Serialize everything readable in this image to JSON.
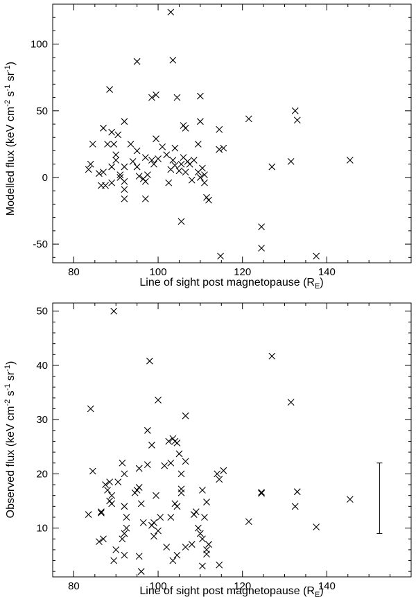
{
  "chart_data": [
    {
      "type": "scatter",
      "marker": "x",
      "xlabel_main": "Line of sight post magnetopause  (R",
      "xlabel_sub": "E",
      "xlabel_close": ")",
      "ylabel_main": "Modelled flux (keV cm",
      "ylabel_sup1": "-2",
      "ylabel_mid1": " s",
      "ylabel_sup2": "-1",
      "ylabel_mid2": " sr",
      "ylabel_sup3": "-1",
      "ylabel_close": ")",
      "xlim": [
        75,
        160
      ],
      "ylim": [
        -64,
        130
      ],
      "xticks": [
        80,
        100,
        120,
        140
      ],
      "xtick_labels": [
        "80",
        "100",
        "120",
        "140"
      ],
      "yticks": [
        -50,
        0,
        50,
        100
      ],
      "ytick_labels": [
        "-50",
        "0",
        "50",
        "100"
      ],
      "grid": false,
      "points": [
        [
          103,
          124
        ],
        [
          95,
          87
        ],
        [
          103.5,
          88
        ],
        [
          88.5,
          66
        ],
        [
          99.5,
          62
        ],
        [
          98.5,
          60
        ],
        [
          104.5,
          60
        ],
        [
          110,
          61
        ],
        [
          92,
          42
        ],
        [
          87,
          37
        ],
        [
          89,
          34
        ],
        [
          90.5,
          32
        ],
        [
          88,
          25
        ],
        [
          84.5,
          25
        ],
        [
          89.5,
          25
        ],
        [
          92,
          8
        ],
        [
          84,
          10
        ],
        [
          83.5,
          6
        ],
        [
          86,
          3
        ],
        [
          87,
          4
        ],
        [
          90,
          13
        ],
        [
          91,
          0
        ],
        [
          91,
          2
        ],
        [
          92,
          -3
        ],
        [
          92,
          -9
        ],
        [
          92,
          -16
        ],
        [
          86.5,
          -6
        ],
        [
          87.5,
          -6
        ],
        [
          89,
          -4
        ],
        [
          89,
          8
        ],
        [
          90,
          17
        ],
        [
          93.5,
          25
        ],
        [
          95,
          20
        ],
        [
          94,
          12
        ],
        [
          95,
          8
        ],
        [
          95.5,
          1
        ],
        [
          96.5,
          -1
        ],
        [
          97,
          -3
        ],
        [
          97.5,
          2
        ],
        [
          97,
          15
        ],
        [
          98.5,
          13
        ],
        [
          99,
          10
        ],
        [
          99.5,
          29
        ],
        [
          100,
          14
        ],
        [
          101,
          23
        ],
        [
          102,
          17
        ],
        [
          102.5,
          -4
        ],
        [
          103,
          6
        ],
        [
          103.5,
          13
        ],
        [
          104,
          9
        ],
        [
          104,
          22
        ],
        [
          105,
          5
        ],
        [
          106,
          39
        ],
        [
          106.5,
          37
        ],
        [
          106,
          15
        ],
        [
          106.5,
          4
        ],
        [
          107,
          12
        ],
        [
          107.5,
          10
        ],
        [
          108,
          -2
        ],
        [
          108.5,
          13
        ],
        [
          109.5,
          4
        ],
        [
          110,
          0
        ],
        [
          110.5,
          7
        ],
        [
          111,
          -4
        ],
        [
          111.5,
          -15
        ],
        [
          112,
          -17
        ],
        [
          109.5,
          25
        ],
        [
          110,
          42
        ],
        [
          105.5,
          -33
        ],
        [
          97,
          -16
        ],
        [
          114.5,
          36
        ],
        [
          114.5,
          21
        ],
        [
          115.5,
          22
        ],
        [
          121.5,
          44
        ],
        [
          114.8,
          -59
        ],
        [
          124.5,
          -37
        ],
        [
          124.5,
          -53
        ],
        [
          127,
          8
        ],
        [
          131.5,
          12
        ],
        [
          132.5,
          50
        ],
        [
          133,
          43
        ],
        [
          137.5,
          -59
        ],
        [
          145.5,
          13
        ],
        [
          105.5,
          10
        ],
        [
          111,
          2
        ]
      ]
    },
    {
      "type": "scatter",
      "marker": "x",
      "xlabel_main": "Line of sight post magnetopause  (R",
      "xlabel_sub": "E",
      "xlabel_close": ")",
      "ylabel_main": "Observed flux (keV cm",
      "ylabel_sup1": "-2",
      "ylabel_mid1": " s",
      "ylabel_sup2": "-1",
      "ylabel_mid2": " sr",
      "ylabel_sup3": "-1",
      "ylabel_close": ")",
      "xlim": [
        75,
        160
      ],
      "ylim": [
        1,
        51.5
      ],
      "xticks": [
        80,
        100,
        120,
        140
      ],
      "xtick_labels": [
        "80",
        "100",
        "120",
        "140"
      ],
      "yticks": [
        10,
        20,
        30,
        40,
        50
      ],
      "ytick_labels": [
        "10",
        "20",
        "30",
        "40",
        "50"
      ],
      "grid": false,
      "points": [
        [
          89.5,
          50
        ],
        [
          98,
          40.8
        ],
        [
          127,
          41.7
        ],
        [
          131.5,
          33.2
        ],
        [
          84,
          32
        ],
        [
          100,
          33.6
        ],
        [
          106.5,
          30.7
        ],
        [
          97.5,
          28
        ],
        [
          84.5,
          20.5
        ],
        [
          87.5,
          18
        ],
        [
          88.5,
          18.5
        ],
        [
          88,
          17
        ],
        [
          89,
          16
        ],
        [
          88.5,
          15
        ],
        [
          89,
          14.5
        ],
        [
          90.5,
          18.5
        ],
        [
          91.5,
          22
        ],
        [
          92,
          20
        ],
        [
          92,
          14
        ],
        [
          92.5,
          12
        ],
        [
          92.5,
          10
        ],
        [
          92,
          9
        ],
        [
          91.5,
          8
        ],
        [
          92,
          5
        ],
        [
          90,
          6
        ],
        [
          89.5,
          4
        ],
        [
          86,
          7.5
        ],
        [
          87,
          8
        ],
        [
          86.5,
          13
        ],
        [
          86.5,
          12.8
        ],
        [
          83.5,
          12.5
        ],
        [
          94.5,
          16.5
        ],
        [
          95,
          17
        ],
        [
          95.5,
          17.5
        ],
        [
          95.5,
          21
        ],
        [
          96,
          14.5
        ],
        [
          96.5,
          11
        ],
        [
          97.5,
          21.7
        ],
        [
          98.5,
          25.3
        ],
        [
          98.5,
          10.5
        ],
        [
          99,
          11
        ],
        [
          99,
          8.5
        ],
        [
          99.5,
          16
        ],
        [
          100,
          9.5
        ],
        [
          100.5,
          12
        ],
        [
          102,
          6.5
        ],
        [
          102.5,
          26
        ],
        [
          103,
          22
        ],
        [
          103.5,
          26.5
        ],
        [
          104,
          26
        ],
        [
          104.5,
          25.7
        ],
        [
          105,
          23.7
        ],
        [
          105.5,
          20
        ],
        [
          104,
          14.5
        ],
        [
          104.5,
          14
        ],
        [
          103,
          12
        ],
        [
          103.5,
          4
        ],
        [
          104.5,
          5
        ],
        [
          105.5,
          16.5
        ],
        [
          105.5,
          17.2
        ],
        [
          106.5,
          22.3
        ],
        [
          106.5,
          6.5
        ],
        [
          108,
          7
        ],
        [
          108.5,
          12.5
        ],
        [
          109,
          13
        ],
        [
          109.5,
          10
        ],
        [
          110,
          9
        ],
        [
          110.5,
          8
        ],
        [
          110.5,
          17
        ],
        [
          111,
          12
        ],
        [
          111.5,
          14.8
        ],
        [
          111.5,
          5.2
        ],
        [
          111.5,
          6
        ],
        [
          112,
          7
        ],
        [
          110.5,
          3
        ],
        [
          114,
          20
        ],
        [
          114.5,
          19
        ],
        [
          115.5,
          20.6
        ],
        [
          114.5,
          3.2
        ],
        [
          96,
          2
        ],
        [
          95.5,
          4.8
        ],
        [
          101.5,
          21.5
        ],
        [
          121.5,
          11.2
        ],
        [
          124.5,
          16.4
        ],
        [
          124.5,
          16.6
        ],
        [
          132.5,
          14
        ],
        [
          133,
          16.7
        ],
        [
          137.5,
          10.2
        ],
        [
          145.5,
          15.3
        ]
      ],
      "error_bar": {
        "x": 152.5,
        "low": 9,
        "high": 22
      }
    }
  ]
}
